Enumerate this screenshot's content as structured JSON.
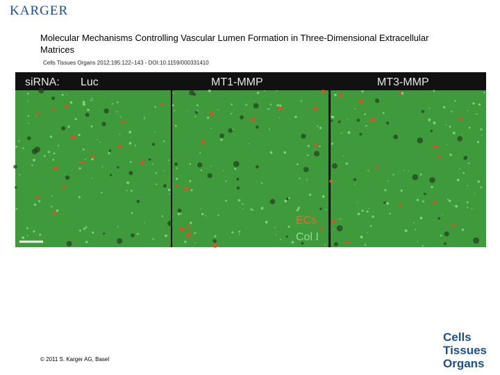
{
  "header": {
    "publisher": "KARGER",
    "title": "Molecular Mechanisms Controlling Vascular Lumen Formation in Three-Dimensional Extracellular Matrices",
    "citation": "Cells Tissues Organs 2012;195:122–143 - DOI:10.1159/000331410"
  },
  "figure": {
    "row_label": "siRNA:",
    "panels": [
      "Luc",
      "MT1-MMP",
      "MT3-MMP"
    ],
    "legend": [
      "ECs",
      "Col I"
    ]
  },
  "footer": {
    "copyright": "© 2011 S. Karger AG, Basel",
    "journal": [
      "Cells",
      "Tissues",
      "Organs"
    ]
  }
}
